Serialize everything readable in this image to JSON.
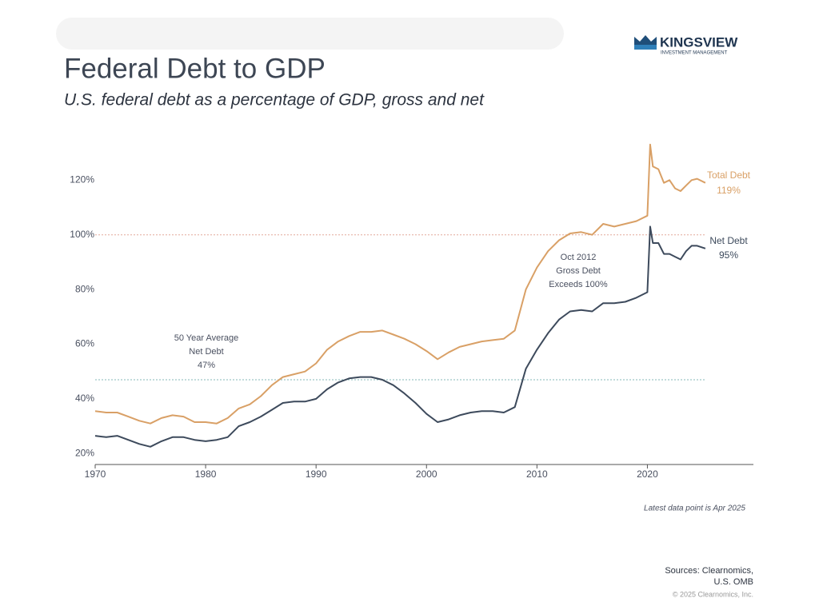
{
  "header": {
    "logo": "KINGSVIEW",
    "logo_sub": "INVESTMENT MANAGEMENT"
  },
  "chart_data": {
    "type": "line",
    "title": "Federal Debt to GDP",
    "subtitle": "U.S. federal debt as a percentage of GDP, gross and net",
    "x": [
      1970,
      1971,
      1972,
      1973,
      1974,
      1975,
      1976,
      1977,
      1978,
      1979,
      1980,
      1981,
      1982,
      1983,
      1984,
      1985,
      1986,
      1987,
      1988,
      1989,
      1990,
      1991,
      1992,
      1993,
      1994,
      1995,
      1996,
      1997,
      1998,
      1999,
      2000,
      2001,
      2002,
      2003,
      2004,
      2005,
      2006,
      2007,
      2008,
      2009,
      2010,
      2011,
      2012,
      2013,
      2014,
      2015,
      2016,
      2017,
      2018,
      2019,
      2020,
      2020.25,
      2020.5,
      2021,
      2021.5,
      2022,
      2022.5,
      2023,
      2023.5,
      2024,
      2024.5,
      2025.25
    ],
    "series": [
      {
        "name": "Total Debt",
        "end_label": "119%",
        "color": "#d9a066",
        "values": [
          35.5,
          35,
          35,
          33.5,
          32,
          31,
          33,
          34,
          33.5,
          31.5,
          31.5,
          31,
          33,
          36.5,
          38,
          41,
          45,
          48,
          49,
          50,
          53,
          58,
          61,
          63,
          64.5,
          64.5,
          65,
          63.5,
          62,
          60,
          57.5,
          54.5,
          57,
          59,
          60,
          61,
          61.5,
          62,
          65,
          80,
          88,
          94,
          98,
          100.5,
          101,
          100,
          104,
          103,
          104,
          105,
          107,
          133,
          125,
          124,
          119,
          120,
          117,
          116,
          118,
          120,
          120.5,
          119
        ]
      },
      {
        "name": "Net Debt",
        "end_label": "95%",
        "color": "#3d4a5c",
        "values": [
          26.5,
          26,
          26.5,
          25,
          23.5,
          22.5,
          24.5,
          26,
          26,
          25,
          24.5,
          25,
          26,
          30,
          31.5,
          33.5,
          36,
          38.5,
          39,
          39,
          40,
          43.5,
          46,
          47.5,
          48,
          48,
          47,
          45,
          42,
          38.5,
          34.5,
          31.5,
          32.5,
          34,
          35,
          35.5,
          35.5,
          35,
          37,
          51,
          58,
          64,
          69,
          72,
          72.5,
          72,
          75,
          75,
          75.5,
          77,
          79,
          103,
          97,
          97,
          93,
          93,
          92,
          91,
          94,
          96,
          96,
          95
        ]
      }
    ],
    "xlim": [
      1970,
      2029.6
    ],
    "xticks": [
      1970,
      1980,
      1990,
      2000,
      2010,
      2020
    ],
    "ylim": [
      16,
      135
    ],
    "yticks": [
      {
        "value": 20,
        "label": "20%"
      },
      {
        "value": 40,
        "label": "40%"
      },
      {
        "value": 60,
        "label": "60%"
      },
      {
        "value": 80,
        "label": "80%"
      },
      {
        "value": 100,
        "label": "100%"
      },
      {
        "value": 120,
        "label": "120%"
      }
    ],
    "grid": false,
    "reference_lines": [
      {
        "value": 100,
        "color": "#e3a99c"
      },
      {
        "value": 47,
        "color": "#86b8b8"
      }
    ],
    "annotations": [
      [
        "50 Year Average",
        "Net Debt",
        "47%"
      ],
      [
        "Oct 2012",
        "Gross Debt",
        "Exceeds 100%"
      ]
    ],
    "note": "Latest data point is Apr 2025"
  },
  "footer": {
    "sources": [
      "Sources: Clearnomics,",
      "U.S. OMB"
    ],
    "copyright": "© 2025 Clearnomics, Inc."
  }
}
